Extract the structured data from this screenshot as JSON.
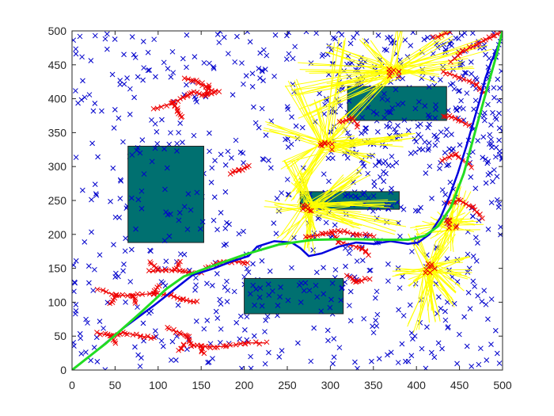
{
  "chart_data": {
    "type": "scatter",
    "title": "",
    "xlabel": "",
    "ylabel": "",
    "xlim": [
      0,
      500
    ],
    "ylim": [
      0,
      500
    ],
    "grid": false,
    "legend": "none",
    "x_ticks": [
      "0",
      "50",
      "100",
      "150",
      "200",
      "250",
      "300",
      "350",
      "400",
      "450",
      "500"
    ],
    "y_ticks": [
      "0",
      "50",
      "100",
      "150",
      "200",
      "250",
      "300",
      "350",
      "400",
      "450",
      "500"
    ],
    "colors": {
      "obstacle": "#007070",
      "samples": "#0000cc",
      "tree": "#ee0000",
      "edges": "#ffff00",
      "path_raw": "#0000dd",
      "path_smooth": "#22dd22"
    },
    "obstacles": [
      {
        "x": [
          65,
          153
        ],
        "y": [
          188,
          330
        ]
      },
      {
        "x": [
          320,
          435
        ],
        "y": [
          368,
          418
        ]
      },
      {
        "x": [
          265,
          380
        ],
        "y": [
          237,
          263
        ]
      },
      {
        "x": [
          200,
          315
        ],
        "y": [
          83,
          135
        ]
      }
    ],
    "sample_count": 900,
    "path_raw": [
      [
        0,
        0
      ],
      [
        30,
        30
      ],
      [
        60,
        62
      ],
      [
        95,
        95
      ],
      [
        120,
        120
      ],
      [
        140,
        140
      ],
      [
        165,
        150
      ],
      [
        185,
        160
      ],
      [
        205,
        168
      ],
      [
        215,
        182
      ],
      [
        235,
        190
      ],
      [
        255,
        188
      ],
      [
        265,
        180
      ],
      [
        275,
        168
      ],
      [
        290,
        172
      ],
      [
        310,
        182
      ],
      [
        330,
        188
      ],
      [
        350,
        186
      ],
      [
        370,
        190
      ],
      [
        390,
        186
      ],
      [
        402,
        188
      ],
      [
        415,
        200
      ],
      [
        428,
        225
      ],
      [
        438,
        255
      ],
      [
        448,
        290
      ],
      [
        458,
        330
      ],
      [
        466,
        365
      ],
      [
        474,
        400
      ],
      [
        480,
        430
      ],
      [
        487,
        455
      ],
      [
        495,
        478
      ],
      [
        500,
        500
      ]
    ],
    "path_smooth": [
      [
        0,
        0
      ],
      [
        40,
        40
      ],
      [
        80,
        85
      ],
      [
        110,
        120
      ],
      [
        130,
        138
      ],
      [
        160,
        152
      ],
      [
        200,
        170
      ],
      [
        240,
        185
      ],
      [
        280,
        192
      ],
      [
        320,
        193
      ],
      [
        360,
        192
      ],
      [
        390,
        192
      ],
      [
        410,
        198
      ],
      [
        425,
        212
      ],
      [
        440,
        240
      ],
      [
        455,
        290
      ],
      [
        470,
        360
      ],
      [
        482,
        415
      ],
      [
        492,
        460
      ],
      [
        500,
        500
      ]
    ],
    "tree_branches": [
      [
        [
          95,
          385
        ],
        [
          115,
          393
        ],
        [
          130,
          402
        ],
        [
          140,
          410
        ],
        [
          155,
          405
        ],
        [
          170,
          412
        ]
      ],
      [
        [
          118,
          393
        ],
        [
          123,
          382
        ],
        [
          128,
          372
        ]
      ],
      [
        [
          130,
          430
        ],
        [
          145,
          426
        ],
        [
          155,
          418
        ],
        [
          165,
          410
        ]
      ],
      [
        [
          155,
          405
        ],
        [
          160,
          420
        ]
      ],
      [
        [
          185,
          290
        ],
        [
          195,
          295
        ],
        [
          205,
          300
        ]
      ],
      [
        [
          155,
          150
        ],
        [
          172,
          158
        ],
        [
          190,
          160
        ],
        [
          205,
          158
        ]
      ],
      [
        [
          90,
          145
        ],
        [
          110,
          148
        ],
        [
          130,
          145
        ],
        [
          150,
          142
        ]
      ],
      [
        [
          100,
          148
        ],
        [
          90,
          158
        ]
      ],
      [
        [
          120,
          148
        ],
        [
          125,
          160
        ]
      ],
      [
        [
          30,
          120
        ],
        [
          50,
          110
        ],
        [
          70,
          110
        ],
        [
          95,
          113
        ],
        [
          115,
          110
        ],
        [
          130,
          103
        ],
        [
          145,
          100
        ]
      ],
      [
        [
          70,
          110
        ],
        [
          75,
          98
        ]
      ],
      [
        [
          95,
          113
        ],
        [
          100,
          125
        ]
      ],
      [
        [
          50,
          110
        ],
        [
          45,
          98
        ]
      ],
      [
        [
          30,
          55
        ],
        [
          45,
          50
        ],
        [
          60,
          55
        ],
        [
          80,
          50
        ],
        [
          95,
          47
        ]
      ],
      [
        [
          45,
          50
        ],
        [
          50,
          40
        ]
      ],
      [
        [
          110,
          62
        ],
        [
          125,
          55
        ],
        [
          135,
          48
        ],
        [
          140,
          36
        ],
        [
          160,
          34
        ],
        [
          180,
          35
        ],
        [
          200,
          40
        ],
        [
          225,
          40
        ]
      ],
      [
        [
          130,
          38
        ],
        [
          125,
          28
        ]
      ],
      [
        [
          150,
          34
        ],
        [
          152,
          24
        ]
      ],
      [
        [
          270,
          195
        ],
        [
          290,
          200
        ],
        [
          310,
          205
        ],
        [
          330,
          200
        ],
        [
          350,
          198
        ]
      ],
      [
        [
          300,
          205
        ],
        [
          310,
          190
        ],
        [
          335,
          180
        ],
        [
          345,
          170
        ]
      ],
      [
        [
          320,
          140
        ],
        [
          330,
          130
        ],
        [
          345,
          135
        ]
      ],
      [
        [
          312,
          365
        ],
        [
          325,
          372
        ],
        [
          332,
          360
        ]
      ],
      [
        [
          435,
          245
        ],
        [
          450,
          250
        ],
        [
          465,
          240
        ],
        [
          475,
          225
        ]
      ],
      [
        [
          430,
          310
        ],
        [
          445,
          318
        ],
        [
          465,
          300
        ]
      ],
      [
        [
          430,
          375
        ],
        [
          445,
          372
        ],
        [
          460,
          360
        ]
      ],
      [
        [
          430,
          440
        ],
        [
          450,
          432
        ],
        [
          470,
          420
        ],
        [
          480,
          408
        ]
      ],
      [
        [
          440,
          455
        ],
        [
          455,
          470
        ],
        [
          470,
          480
        ],
        [
          485,
          490
        ],
        [
          497,
          497
        ]
      ],
      [
        [
          420,
          490
        ],
        [
          440,
          498
        ]
      ]
    ],
    "edge_fans": [
      {
        "cx": 375,
        "cy": 440,
        "targets": [
          [
            270,
            445
          ],
          [
            255,
            410
          ],
          [
            300,
            470
          ],
          [
            340,
            485
          ],
          [
            385,
            500
          ],
          [
            440,
            495
          ],
          [
            480,
            480
          ],
          [
            460,
            450
          ],
          [
            420,
            430
          ],
          [
            300,
            420
          ],
          [
            270,
            380
          ],
          [
            310,
            360
          ]
        ]
      },
      {
        "cx": 295,
        "cy": 330,
        "targets": [
          [
            255,
            420
          ],
          [
            310,
            480
          ],
          [
            250,
            300
          ],
          [
            260,
            270
          ],
          [
            330,
            340
          ],
          [
            350,
            310
          ],
          [
            380,
            335
          ],
          [
            395,
            345
          ],
          [
            315,
            365
          ],
          [
            280,
            390
          ],
          [
            230,
            360
          ],
          [
            255,
            250
          ]
        ]
      },
      {
        "cx": 275,
        "cy": 240,
        "targets": [
          [
            230,
            240
          ],
          [
            250,
            300
          ],
          [
            320,
            280
          ],
          [
            330,
            240
          ],
          [
            370,
            245
          ],
          [
            380,
            210
          ],
          [
            280,
            200
          ],
          [
            245,
            190
          ],
          [
            275,
            175
          ],
          [
            330,
            215
          ],
          [
            340,
            295
          ],
          [
            260,
            285
          ]
        ]
      },
      {
        "cx": 415,
        "cy": 150,
        "targets": [
          [
            395,
            200
          ],
          [
            430,
            185
          ],
          [
            455,
            165
          ],
          [
            450,
            120
          ],
          [
            440,
            100
          ],
          [
            420,
            75
          ],
          [
            395,
            60
          ],
          [
            410,
            95
          ],
          [
            395,
            125
          ],
          [
            380,
            145
          ],
          [
            460,
            140
          ],
          [
            440,
            210
          ]
        ]
      },
      {
        "cx": 440,
        "cy": 215,
        "targets": [
          [
            420,
            225
          ],
          [
            450,
            250
          ],
          [
            460,
            230
          ],
          [
            470,
            210
          ],
          [
            420,
            195
          ],
          [
            435,
            180
          ],
          [
            455,
            270
          ],
          [
            400,
            210
          ]
        ]
      }
    ]
  }
}
